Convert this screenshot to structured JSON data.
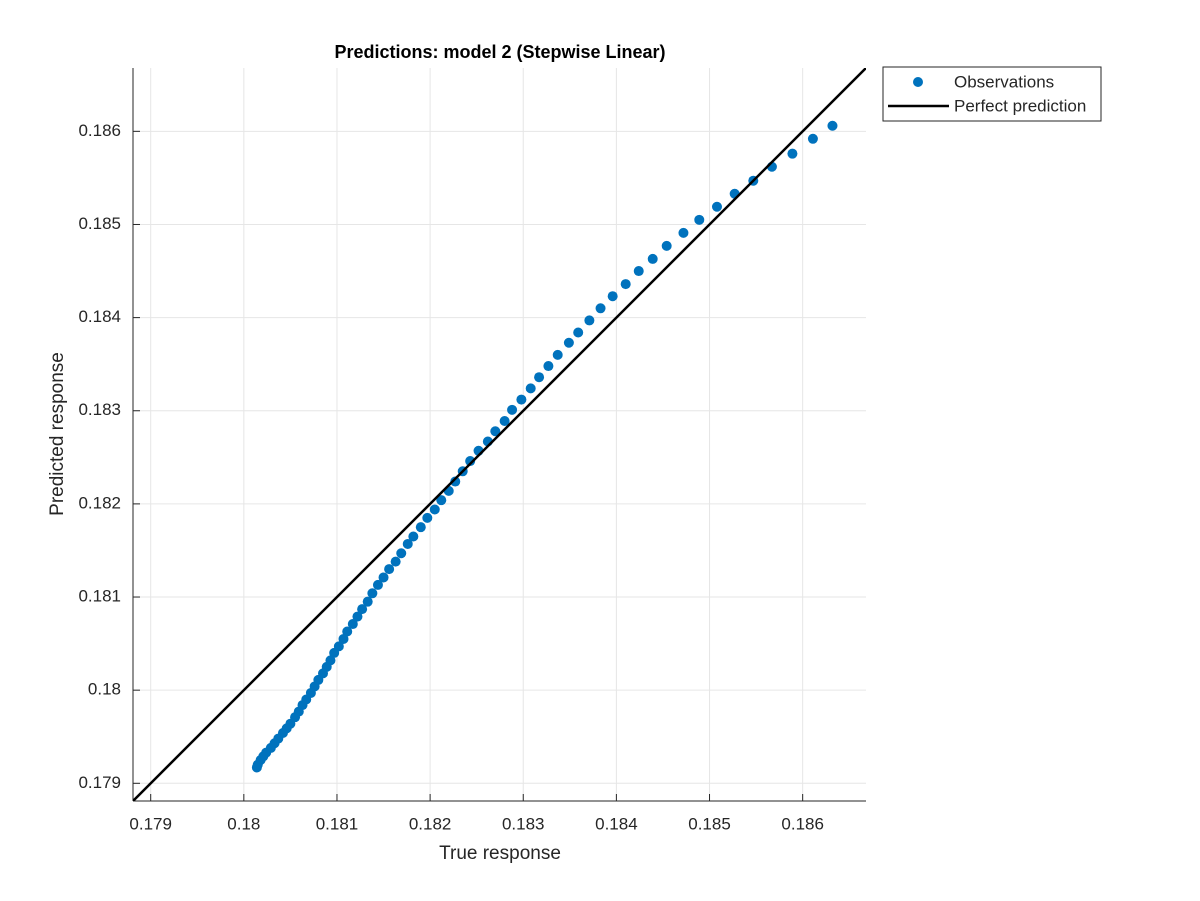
{
  "chart_data": {
    "type": "scatter",
    "title": "Predictions: model 2 (Stepwise Linear)",
    "x_label": "True response",
    "y_label": "Predicted response",
    "xlim": [
      0.17881,
      0.18668
    ],
    "ylim": [
      0.17881,
      0.18668
    ],
    "xticks": [
      0.179,
      0.18,
      0.181,
      0.182,
      0.183,
      0.184,
      0.185,
      0.186
    ],
    "yticks": [
      0.179,
      0.18,
      0.181,
      0.182,
      0.183,
      0.184,
      0.185,
      0.186
    ],
    "grid": true,
    "legend": "northeastoutside",
    "series": [
      {
        "name": "Observations",
        "color": "#0072bd",
        "mode": "markers",
        "x": [
          0.18632,
          0.18611,
          0.18589,
          0.18567,
          0.18547,
          0.18527,
          0.18508,
          0.18489,
          0.18472,
          0.18454,
          0.18439,
          0.18424,
          0.1841,
          0.18396,
          0.18383,
          0.18371,
          0.18359,
          0.18349,
          0.18337,
          0.18327,
          0.18317,
          0.18308,
          0.18298,
          0.18288,
          0.1828,
          0.1827,
          0.18262,
          0.18252,
          0.18243,
          0.18235,
          0.18227,
          0.1822,
          0.18212,
          0.18205,
          0.18197,
          0.1819,
          0.18182,
          0.18176,
          0.18169,
          0.18163,
          0.18156,
          0.1815,
          0.18144,
          0.18138,
          0.18133,
          0.18127,
          0.18122,
          0.18117,
          0.18111,
          0.18107,
          0.18102,
          0.18097,
          0.18093,
          0.18089,
          0.18085,
          0.1808,
          0.18076,
          0.18072,
          0.18067,
          0.18063,
          0.18059,
          0.18055,
          0.1805,
          0.18046,
          0.18042,
          0.18037,
          0.18033,
          0.18029,
          0.18024,
          0.18021,
          0.18018,
          0.18015,
          0.18014
        ],
        "values": [
          0.18606,
          0.18592,
          0.18576,
          0.18562,
          0.18547,
          0.18533,
          0.18519,
          0.18505,
          0.18491,
          0.18477,
          0.18463,
          0.1845,
          0.18436,
          0.18423,
          0.1841,
          0.18397,
          0.18384,
          0.18373,
          0.1836,
          0.18348,
          0.18336,
          0.18324,
          0.18312,
          0.18301,
          0.18289,
          0.18278,
          0.18267,
          0.18257,
          0.18246,
          0.18235,
          0.18224,
          0.18214,
          0.18204,
          0.18194,
          0.18185,
          0.18175,
          0.18165,
          0.18157,
          0.18147,
          0.18138,
          0.1813,
          0.18121,
          0.18113,
          0.18104,
          0.18095,
          0.18087,
          0.18079,
          0.18071,
          0.18063,
          0.18055,
          0.18047,
          0.1804,
          0.18032,
          0.18025,
          0.18018,
          0.18011,
          0.18004,
          0.17997,
          0.1799,
          0.17984,
          0.17977,
          0.17971,
          0.17964,
          0.17959,
          0.17954,
          0.17948,
          0.17943,
          0.17938,
          0.17933,
          0.17929,
          0.17925,
          0.1792,
          0.17917
        ]
      },
      {
        "name": "Perfect prediction",
        "color": "#000000",
        "mode": "line",
        "x": [
          0.17881,
          0.18668
        ],
        "values": [
          0.17881,
          0.18668
        ]
      }
    ]
  }
}
